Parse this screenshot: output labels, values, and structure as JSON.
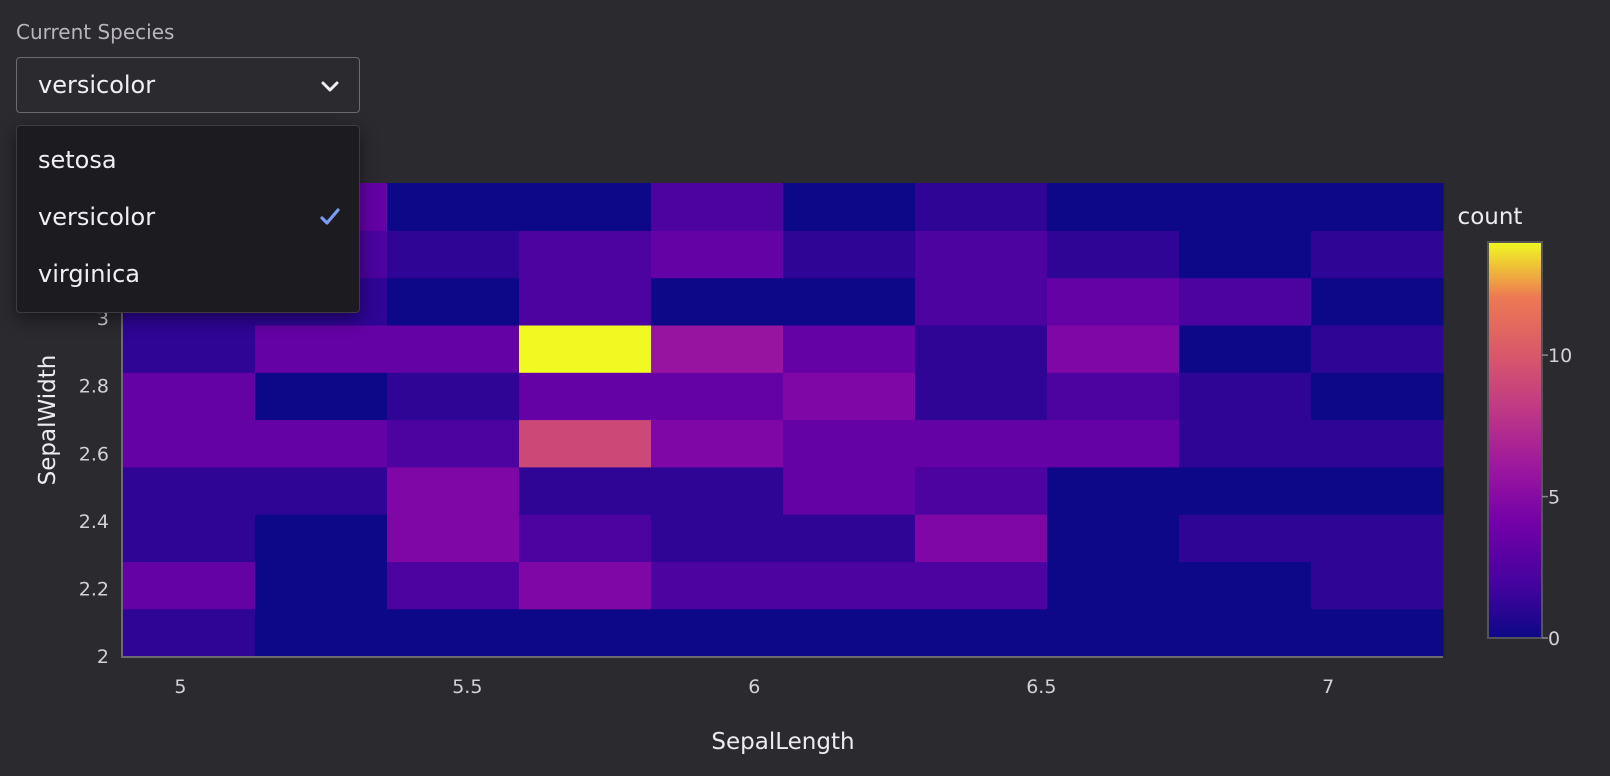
{
  "control": {
    "label": "Current Species",
    "selected": "versicolor",
    "options": [
      "setosa",
      "versicolor",
      "virginica"
    ],
    "selected_index": 1,
    "accent_color": "#7b9cf5"
  },
  "chart_data": {
    "type": "heatmap",
    "xlabel": "SepalLength",
    "ylabel": "SepalWidth",
    "x_ticks": [
      5,
      5.5,
      6,
      6.5,
      7
    ],
    "y_ticks": [
      2,
      2.2,
      2.4,
      2.6,
      2.8,
      3
    ],
    "xlim": [
      4.9,
      7.2
    ],
    "ylim": [
      2.0,
      3.4
    ],
    "x_bins": [
      4.9,
      5.13,
      5.36,
      5.59,
      5.82,
      6.05,
      6.28,
      6.51,
      6.74,
      6.97,
      7.2
    ],
    "y_bins": [
      2.0,
      2.14,
      2.28,
      2.42,
      2.56,
      2.7,
      2.84,
      2.98,
      3.12,
      3.26,
      3.4
    ],
    "counts": [
      [
        1,
        0,
        0,
        0,
        0,
        0,
        0,
        0,
        0,
        0
      ],
      [
        3,
        0,
        2,
        4,
        2,
        2,
        2,
        0,
        0,
        1
      ],
      [
        1,
        0,
        4,
        2,
        1,
        1,
        4,
        0,
        1,
        1
      ],
      [
        1,
        1,
        4,
        1,
        1,
        3,
        2,
        0,
        0,
        0
      ],
      [
        3,
        3,
        2,
        8,
        4,
        3,
        3,
        3,
        1,
        1
      ],
      [
        3,
        0,
        1,
        3,
        3,
        4,
        1,
        2,
        1,
        0
      ],
      [
        1,
        3,
        3,
        14,
        5,
        3,
        1,
        4,
        0,
        1
      ],
      [
        1,
        1,
        0,
        2,
        0,
        0,
        2,
        3,
        2,
        0
      ],
      [
        0,
        2,
        1,
        2,
        3,
        1,
        2,
        1,
        0,
        1
      ],
      [
        2,
        3,
        0,
        0,
        2,
        0,
        1,
        0,
        0,
        0
      ]
    ],
    "colorbar": {
      "title": "count",
      "ticks": [
        0,
        5,
        10
      ],
      "range": [
        0,
        14
      ],
      "colorscale": "plasma"
    },
    "grid": false
  }
}
